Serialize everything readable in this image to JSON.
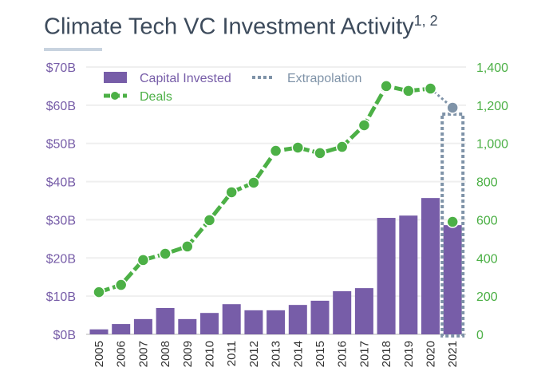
{
  "chart_data": {
    "type": "bar+line",
    "title": "Climate Tech VC Investment Activity",
    "title_superscript": "1, 2",
    "categories": [
      "2005",
      "2006",
      "2007",
      "2008",
      "2009",
      "2010",
      "2011",
      "2012",
      "2013",
      "2014",
      "2015",
      "2016",
      "2017",
      "2018",
      "2019",
      "2020",
      "2021"
    ],
    "series": [
      {
        "name": "Capital Invested",
        "type": "bar",
        "axis": "left",
        "unit": "$B",
        "values": [
          1.3,
          2.7,
          4.0,
          6.9,
          4.0,
          5.6,
          7.9,
          6.3,
          6.3,
          7.7,
          8.8,
          11.3,
          12.1,
          30.5,
          31.1,
          35.7,
          28.6
        ]
      },
      {
        "name": "Deals",
        "type": "line",
        "axis": "right",
        "values": [
          221,
          259,
          389,
          422,
          460,
          598,
          744,
          794,
          961,
          978,
          949,
          982,
          1095,
          1300,
          1275,
          1287,
          589
        ]
      },
      {
        "name": "Extrapolation",
        "type": "dotted",
        "year": "2021",
        "deals": 1187
      }
    ],
    "left_axis": {
      "ylim": [
        0,
        70
      ],
      "ticks": [
        "$0B",
        "$10B",
        "$20B",
        "$30B",
        "$40B",
        "$50B",
        "$60B",
        "$70B"
      ]
    },
    "right_axis": {
      "ylim": [
        0,
        1400
      ],
      "ticks": [
        "0",
        "200",
        "400",
        "600",
        "800",
        "1,000",
        "1,200",
        "1,400"
      ]
    },
    "grid": true,
    "legend": "top-left",
    "colors": {
      "bar": "#775da8",
      "line": "#4cb046",
      "extrapolation": "#7f93a8",
      "title": "#3d4b5c"
    }
  }
}
